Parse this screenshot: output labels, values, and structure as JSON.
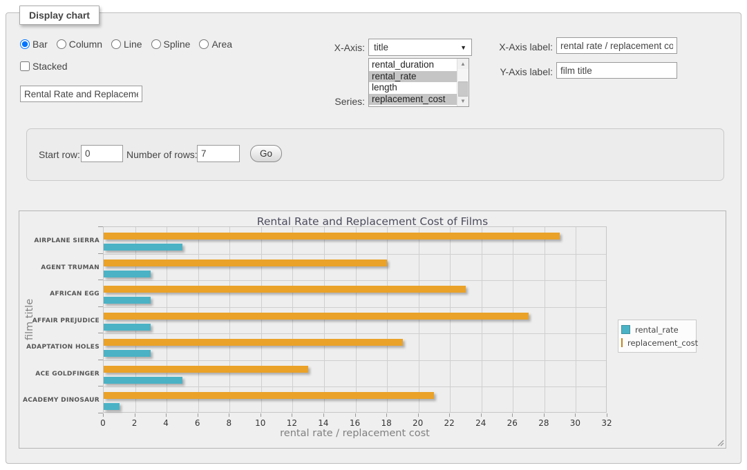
{
  "window": {
    "legend": "Display chart"
  },
  "chart_type": {
    "options": [
      {
        "label": "Bar",
        "checked": true
      },
      {
        "label": "Column",
        "checked": false
      },
      {
        "label": "Line",
        "checked": false
      },
      {
        "label": "Spline",
        "checked": false
      },
      {
        "label": "Area",
        "checked": false
      }
    ]
  },
  "stacked": {
    "label": "Stacked",
    "checked": false
  },
  "title_input": {
    "value": "Rental Rate and Replacement Cost of Films"
  },
  "x_axis_select": {
    "label": "X-Axis:",
    "value": "title"
  },
  "series_list": {
    "label": "Series:",
    "options": [
      {
        "label": "rental_duration",
        "selected": false
      },
      {
        "label": "rental_rate",
        "selected": true
      },
      {
        "label": "length",
        "selected": false
      },
      {
        "label": "replacement_cost",
        "selected": true
      }
    ]
  },
  "axis_label_inputs": {
    "x_label": "X-Axis label:",
    "x_value": "rental rate / replacement cost",
    "y_label": "Y-Axis label:",
    "y_value": "film title"
  },
  "row_controls": {
    "start_row_label": "Start row:",
    "start_row_value": "0",
    "num_rows_label": "Number of rows:",
    "num_rows_value": "7",
    "go_label": "Go"
  },
  "icons": {
    "select_arrow": "▼",
    "scroll_up": "▲",
    "scroll_down": "▼"
  },
  "chart_data": {
    "type": "bar",
    "orientation": "horizontal",
    "title": "Rental Rate and Replacement Cost of Films",
    "categories": [
      "AIRPLANE SIERRA",
      "AGENT TRUMAN",
      "AFRICAN EGG",
      "AFFAIR PREJUDICE",
      "ADAPTATION HOLES",
      "ACE GOLDFINGER",
      "ACADEMY DINOSAUR"
    ],
    "series": [
      {
        "name": "rental_rate",
        "color": "#4bb2c5",
        "values": [
          4.99,
          2.99,
          2.99,
          2.99,
          2.99,
          4.99,
          0.99
        ]
      },
      {
        "name": "replacement_cost",
        "color": "#eaa228",
        "values": [
          28.99,
          17.99,
          22.99,
          26.99,
          18.99,
          12.99,
          20.99
        ]
      }
    ],
    "xlabel": "rental rate / replacement cost",
    "ylabel": "film title",
    "xlim": [
      0,
      32
    ],
    "xticks": [
      0,
      2,
      4,
      6,
      8,
      10,
      12,
      14,
      16,
      18,
      20,
      22,
      24,
      26,
      28,
      30,
      32
    ],
    "grid": true,
    "legend_position": "right"
  }
}
